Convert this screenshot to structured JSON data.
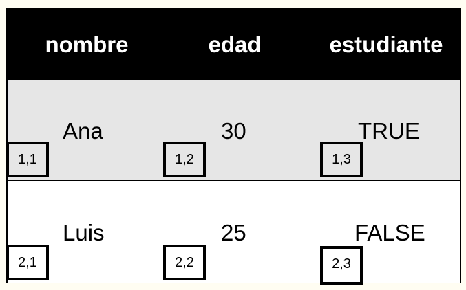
{
  "table": {
    "headers": [
      "nombre",
      "edad",
      "estudiante"
    ],
    "rows": [
      {
        "cells": [
          {
            "value": "Ana",
            "index": "1,1"
          },
          {
            "value": "30",
            "index": "1,2"
          },
          {
            "value": "TRUE",
            "index": "1,3"
          }
        ]
      },
      {
        "cells": [
          {
            "value": "Luis",
            "index": "2,1"
          },
          {
            "value": "25",
            "index": "2,2"
          },
          {
            "value": "FALSE",
            "index": "2,3"
          }
        ]
      }
    ]
  },
  "colors": {
    "header_bg": "#000000",
    "header_text": "#ffffff",
    "row1_bg": "#e6e6e6",
    "row2_bg": "#ffffff",
    "page_bg": "#fffdf2"
  }
}
